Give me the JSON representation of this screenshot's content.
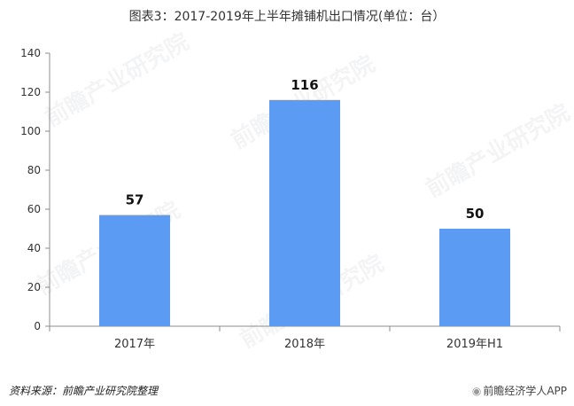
{
  "title": "图表3：2017-2019年上半年摊铺机出口情况(单位：台）",
  "watermark": "前瞻产业研究院",
  "footer": {
    "source": "资料来源：前瞻产业研究院整理",
    "brand": "前瞻经济学人APP",
    "brand_icon": "bird-logo-icon"
  },
  "colors": {
    "bar": "#5b9bf3",
    "axis": "#8c8c8c"
  },
  "chart_data": {
    "type": "bar",
    "title": "图表3：2017-2019年上半年摊铺机出口情况(单位：台）",
    "categories": [
      "2017年",
      "2018年",
      "2019年H1"
    ],
    "values": [
      57,
      116,
      50
    ],
    "value_labels": [
      "57",
      "116",
      "50"
    ],
    "ylim": [
      0,
      140
    ],
    "yticks": [
      0,
      20,
      40,
      60,
      80,
      100,
      120,
      140
    ],
    "ytick_labels": [
      "0",
      "20",
      "40",
      "60",
      "80",
      "100",
      "120",
      "140"
    ],
    "xlabel": "",
    "ylabel": "",
    "grid": false,
    "legend": "none"
  }
}
